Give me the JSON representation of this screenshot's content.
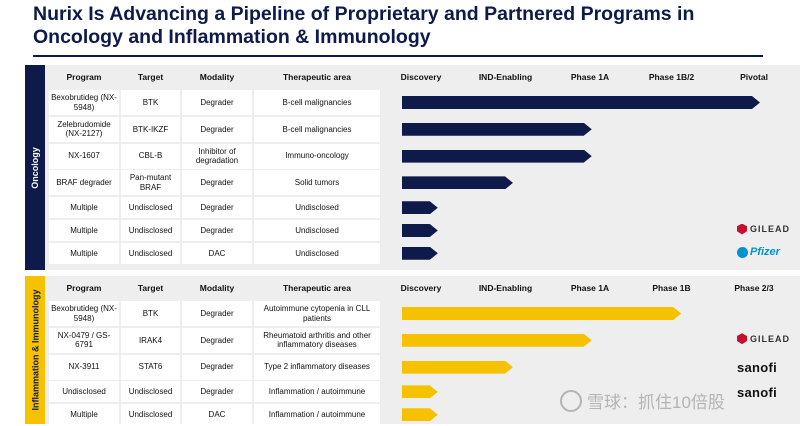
{
  "title": "Nurix Is Advancing a Pipeline of Proprietary and Partnered Programs in Oncology and Inflammation & Immunology",
  "sections": [
    {
      "name": "Oncology",
      "headers": [
        "Program",
        "Target",
        "Modality",
        "Therapeutic area",
        "Discovery",
        "IND-Enabling",
        "Phase 1A",
        "Phase 1B/2",
        "Pivotal"
      ],
      "rows": [
        {
          "program": "Bexobrutideg (NX-5948)",
          "target": "BTK",
          "modality": "Degrader",
          "area": "B-cell malignancies",
          "progress": 1.0,
          "partner": ""
        },
        {
          "program": "Zelebrudomide (NX-2127)",
          "target": "BTK-IKZF",
          "modality": "Degrader",
          "area": "B-cell malignancies",
          "progress": 0.53,
          "partner": ""
        },
        {
          "program": "NX-1607",
          "target": "CBL-B",
          "modality": "Inhibitor of degradation",
          "area": "Immuno-oncology",
          "progress": 0.53,
          "partner": ""
        },
        {
          "program": "BRAF degrader",
          "target": "Pan-mutant BRAF",
          "modality": "Degrader",
          "area": "Solid tumors",
          "progress": 0.31,
          "partner": ""
        },
        {
          "program": "Multiple",
          "target": "Undisclosed",
          "modality": "Degrader",
          "area": "Undisclosed",
          "progress": 0.1,
          "partner": ""
        },
        {
          "program": "Multiple",
          "target": "Undisclosed",
          "modality": "Degrader",
          "area": "Undisclosed",
          "progress": 0.1,
          "partner": "GILEAD"
        },
        {
          "program": "Multiple",
          "target": "Undisclosed",
          "modality": "DAC",
          "area": "Undisclosed",
          "progress": 0.1,
          "partner": "Pfizer"
        }
      ]
    },
    {
      "name": "Inflammation & Immunology",
      "headers": [
        "Program",
        "Target",
        "Modality",
        "Therapeutic area",
        "Discovery",
        "IND-Enabling",
        "Phase 1A",
        "Phase 1B",
        "Phase 2/3"
      ],
      "rows": [
        {
          "program": "Bexobrutideg (NX-5948)",
          "target": "BTK",
          "modality": "Degrader",
          "area": "Autoimmune cytopenia in CLL patients",
          "progress": 0.78,
          "partner": ""
        },
        {
          "program": "NX-0479 / GS-6791",
          "target": "IRAK4",
          "modality": "Degrader",
          "area": "Rheumatoid arthritis and other inflammatory diseases",
          "progress": 0.53,
          "partner": "GILEAD"
        },
        {
          "program": "NX-3911",
          "target": "STAT6",
          "modality": "Degrader",
          "area": "Type 2 inflammatory diseases",
          "progress": 0.31,
          "partner": "sanofi"
        },
        {
          "program": "Undisclosed",
          "target": "Undisclosed",
          "modality": "Degrader",
          "area": "Inflammation / autoimmune",
          "progress": 0.1,
          "partner": "sanofi"
        },
        {
          "program": "Multiple",
          "target": "Undisclosed",
          "modality": "DAC",
          "area": "Inflammation / autoimmune",
          "progress": 0.1,
          "partner": ""
        }
      ]
    }
  ],
  "colors": {
    "oncology": "#0d1a4a",
    "inflammation": "#f6c200"
  },
  "watermark": "雪球：抓住10倍股"
}
